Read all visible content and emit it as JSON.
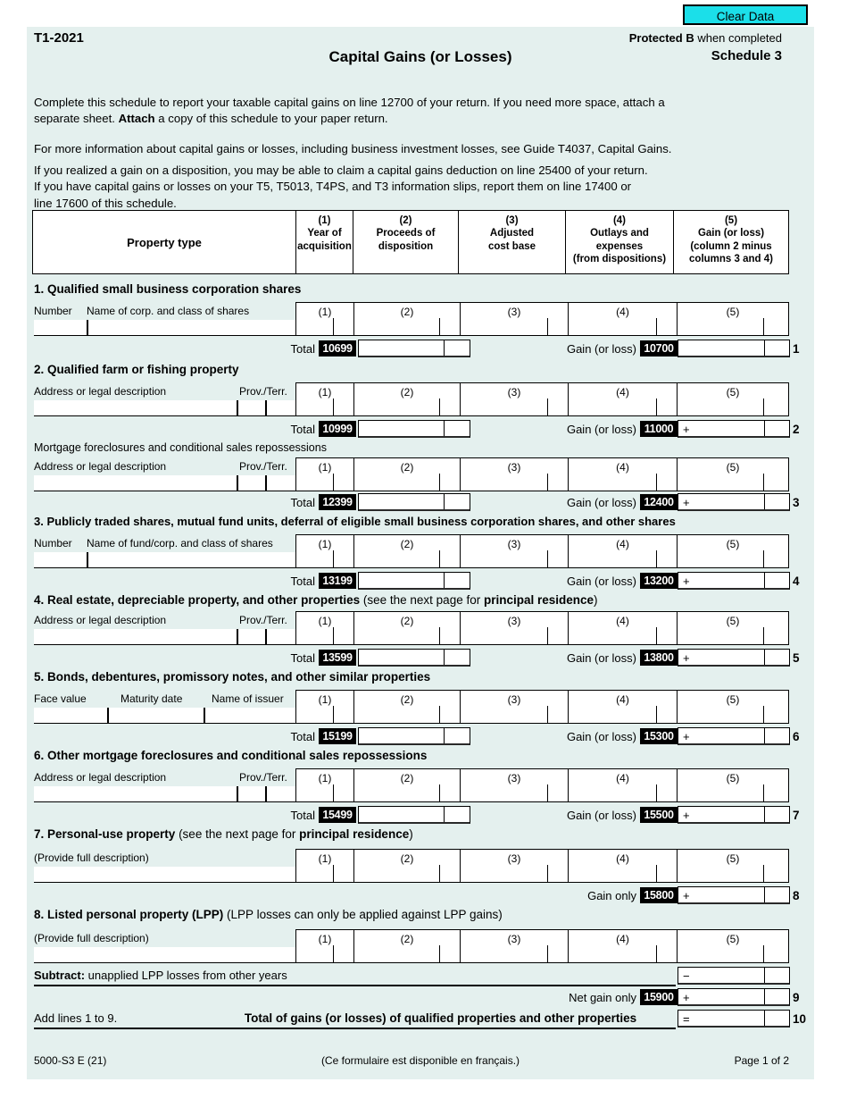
{
  "colors": {
    "accent_cyan": "#1bdfe9",
    "panel_bg": "#e4f0ee",
    "code_box_bg": "#000000"
  },
  "clear_button": "Clear Data",
  "header": {
    "form_code": "T1-2021",
    "protected_bold": "Protected B",
    "protected_rest": " when completed",
    "title": "Capital Gains (or Losses)",
    "schedule": "Schedule 3"
  },
  "intro": {
    "p1_a": "Complete this schedule to report your taxable capital gains on line 12700 of your return. If you need more space, attach a\nseparate sheet. ",
    "p1_bold": "Attach",
    "p1_b": " a copy of this schedule to your paper return.",
    "p2": "For more information about capital gains or losses, including business investment losses, see Guide T4037, Capital Gains.",
    "p3": "If you realized a gain on a disposition, you may be able to claim a capital gains deduction on line 25400 of your return.\nIf you have capital gains or losses on your T5, T5013, T4PS, and T3 information slips, report them on line 17400 or\nline 17600 of this schedule."
  },
  "table": {
    "property_type": "Property type",
    "cols": [
      "(1)\nYear of\nacquisition",
      "(2)\nProceeds of\ndisposition",
      "(3)\nAdjusted\ncost base",
      "(4)\nOutlays and\nexpenses\n(from dispositions)",
      "(5)\nGain (or loss)\n(column 2 minus\ncolumns 3 and 4)"
    ]
  },
  "col_nums": [
    "(1)",
    "(2)",
    "(3)",
    "(4)",
    "(5)"
  ],
  "sections": [
    {
      "title_b": "1. Qualified small business corporation shares",
      "lab_a": "Number",
      "lab_b": "Name of corp. and class of shares",
      "total_label": "Total",
      "total_code": "10699",
      "gain_label": "Gain (or loss)",
      "gain_code": "10700",
      "plus": "",
      "line": "1"
    },
    {
      "title_b": "2. Qualified farm or fishing property",
      "lab_a": "Address or legal description",
      "lab_b": "Prov./Terr.",
      "total_label": "Total",
      "total_code": "10999",
      "gain_label": "Gain (or loss)",
      "gain_code": "11000",
      "plus": "+",
      "line": "2"
    },
    {
      "title_n": "Mortgage foreclosures and conditional sales repossessions",
      "lab_a": "Address or legal description",
      "lab_b": "Prov./Terr.",
      "total_label": "Total",
      "total_code": "12399",
      "gain_label": "Gain (or loss)",
      "gain_code": "12400",
      "plus": "+",
      "line": "3"
    },
    {
      "title_b": "3. Publicly traded shares, mutual fund units, deferral of eligible small business corporation shares, and other shares",
      "lab_a": "Number",
      "lab_b": "Name of fund/corp. and class of shares",
      "total_label": "Total",
      "total_code": "13199",
      "gain_label": "Gain (or loss)",
      "gain_code": "13200",
      "plus": "+",
      "line": "4"
    },
    {
      "title_b": "4. Real estate, depreciable property, and other properties",
      "t2": " (see the next page for ",
      "t3": "principal residence",
      "t4": ")",
      "lab_a": "Address or legal description",
      "lab_b": "Prov./Terr.",
      "total_label": "Total",
      "total_code": "13599",
      "gain_label": "Gain (or loss)",
      "gain_code": "13800",
      "plus": "+",
      "line": "5"
    },
    {
      "title_b": "5. Bonds, debentures, promissory notes, and other similar properties",
      "lab_a": "Face value",
      "lab_b": "Maturity date",
      "lab_c": "Name of issuer",
      "total_label": "Total",
      "total_code": "15199",
      "gain_label": "Gain (or loss)",
      "gain_code": "15300",
      "plus": "+",
      "line": "6"
    },
    {
      "title_b": "6. Other mortgage foreclosures and conditional sales repossessions",
      "lab_a": "Address or legal description",
      "lab_b": "Prov./Terr.",
      "total_label": "Total",
      "total_code": "15499",
      "gain_label": "Gain (or loss)",
      "gain_code": "15500",
      "plus": "+",
      "line": "7"
    },
    {
      "title_b": "7. Personal-use property",
      "t2": " (see the next page for ",
      "t3": "principal residence",
      "t4": ")",
      "desc": "(Provide full description)",
      "gain_label": "Gain only",
      "gain_code": "15800",
      "plus": "+",
      "line": "8"
    },
    {
      "title_b": "8. Listed personal property (LPP)",
      "t2": " (LPP losses can only be applied against LPP gains)",
      "desc": "(Provide full description)"
    }
  ],
  "bottom": {
    "subtract_bold": "Subtract:",
    "subtract_rest": " unapplied LPP losses from other years",
    "minus": "−",
    "net_label": "Net gain only",
    "net_code": "15900",
    "plus": "+",
    "line9": "9",
    "add_label": "Add lines 1 to 9.",
    "add_bold": "Total of gains (or losses) of qualified properties and other properties",
    "equals": "=",
    "line10": "10"
  },
  "footer": {
    "left": "5000-S3 E (21)",
    "center": "(Ce formulaire est disponible en français.)",
    "right": "Page 1 of 2"
  }
}
